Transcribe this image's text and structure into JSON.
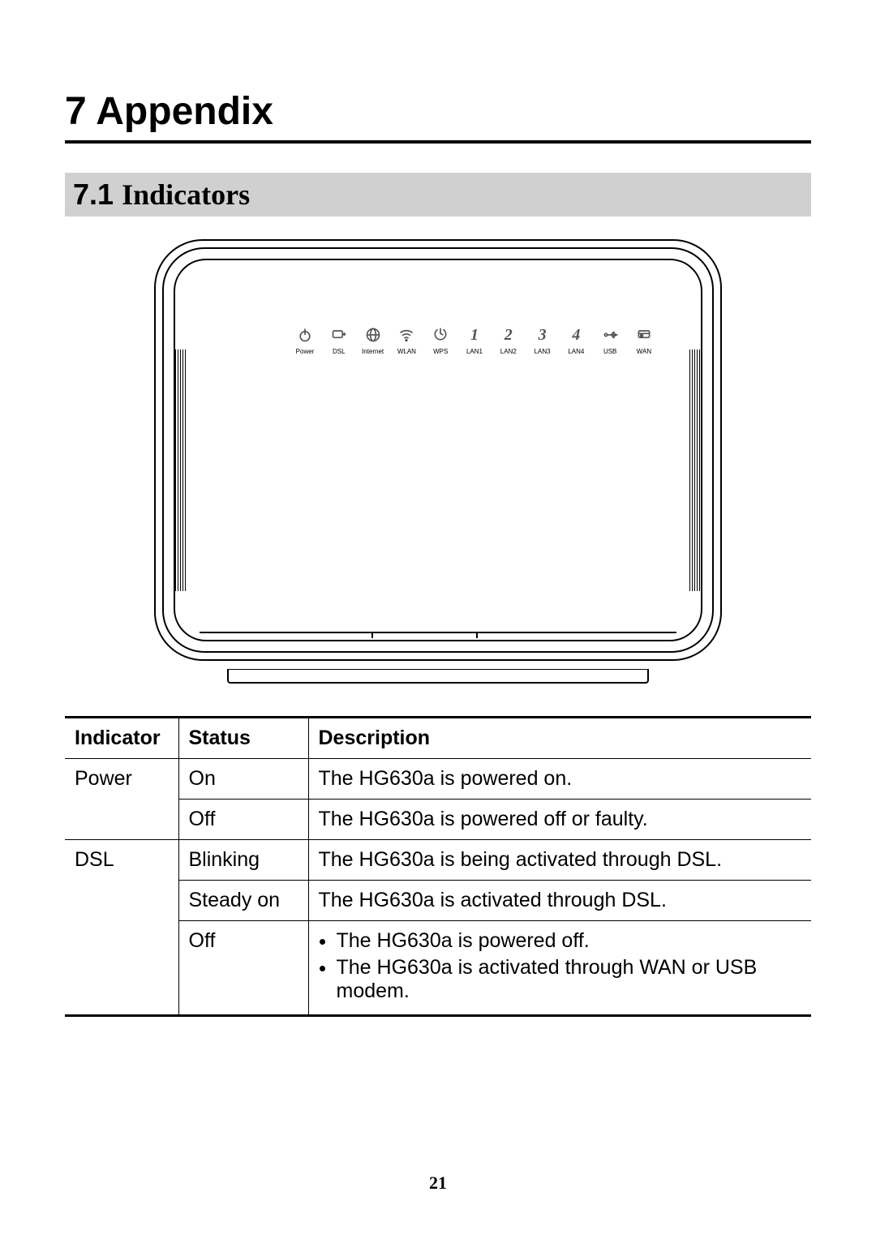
{
  "chapter": {
    "number": "7",
    "title": "Appendix"
  },
  "section": {
    "number": "7.1",
    "title": "Indicators"
  },
  "device": {
    "indicators": [
      {
        "label": "Power",
        "glyph": "power"
      },
      {
        "label": "DSL",
        "glyph": "dsl"
      },
      {
        "label": "Internet",
        "glyph": "internet"
      },
      {
        "label": "WLAN",
        "glyph": "wlan"
      },
      {
        "label": "WPS",
        "glyph": "wps"
      },
      {
        "label": "LAN1",
        "glyph": "1"
      },
      {
        "label": "LAN2",
        "glyph": "2"
      },
      {
        "label": "LAN3",
        "glyph": "3"
      },
      {
        "label": "LAN4",
        "glyph": "4"
      },
      {
        "label": "USB",
        "glyph": "usb"
      },
      {
        "label": "WAN",
        "glyph": "wan"
      }
    ]
  },
  "table": {
    "headers": {
      "c1": "Indicator",
      "c2": "Status",
      "c3": "Description"
    },
    "rows": [
      {
        "indicator": "Power",
        "status": "On",
        "desc": "The HG630a is powered on."
      },
      {
        "indicator": "",
        "status": "Off",
        "desc": "The HG630a is powered off or faulty."
      },
      {
        "indicator": "DSL",
        "status": "Blinking",
        "desc": "The HG630a is being activated through DSL."
      },
      {
        "indicator": "",
        "status": "Steady on",
        "desc": "The HG630a is activated through DSL."
      },
      {
        "indicator": "",
        "status": "Off",
        "desc_list": [
          "The HG630a is powered off.",
          "The HG630a is activated through WAN or USB modem."
        ]
      }
    ]
  },
  "page_number": "21",
  "colors": {
    "section_bg": "#d0d0d0",
    "text": "#000000"
  }
}
